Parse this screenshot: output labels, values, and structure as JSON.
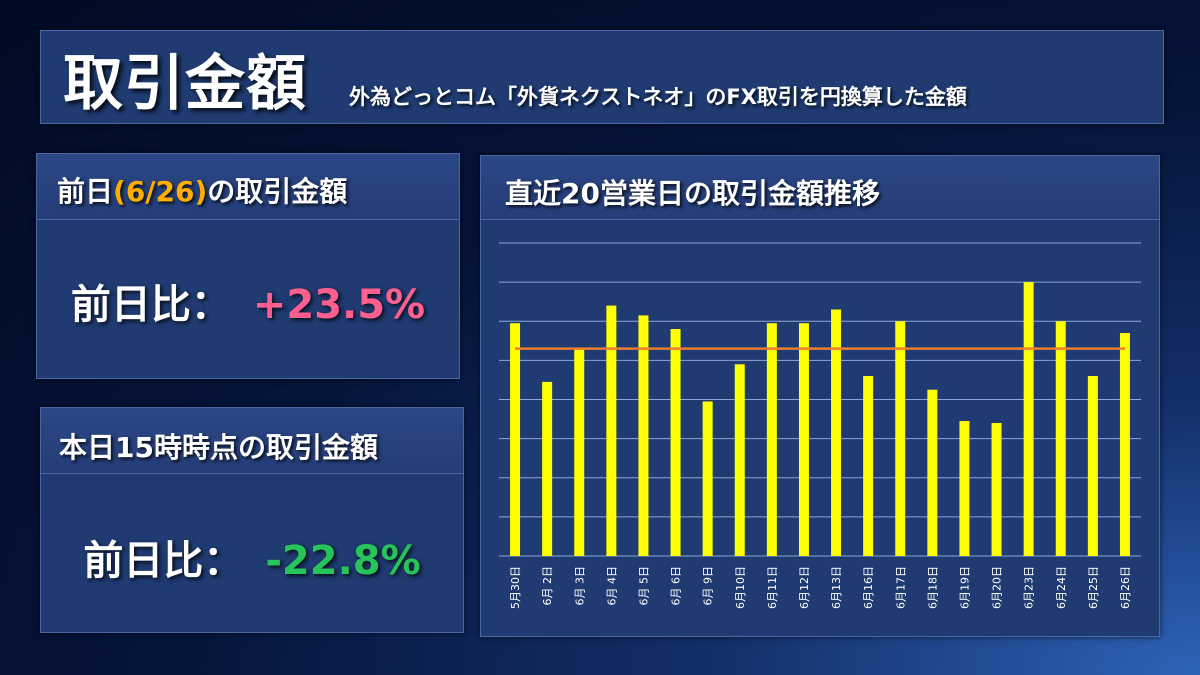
{
  "header": {
    "title": "取引金額",
    "subtitle": "外為どっとコム「外貨ネクストネオ」のFX取引を円換算した金額"
  },
  "prev_day": {
    "title_prefix": "前日",
    "title_date": "(6/26)",
    "title_suffix": "の取引金額",
    "ratio_label": "前日比：",
    "ratio_value": "+23.5%",
    "ratio_color": "#ff5f8f"
  },
  "today": {
    "title": "本日15時時点の取引金額",
    "ratio_label": "前日比：",
    "ratio_value": "-22.8%",
    "ratio_color": "#27c45a"
  },
  "chart": {
    "title": "直近20営業日の取引金額推移"
  },
  "chart_data": {
    "type": "bar",
    "title": "直近20営業日の取引金額推移",
    "xlabel": "",
    "ylabel": "",
    "categories": [
      "5月30日",
      "6月 2日",
      "6月 3日",
      "6月 4日",
      "6月 5日",
      "6月 6日",
      "6月 9日",
      "6月10日",
      "6月11日",
      "6月12日",
      "6月13日",
      "6月16日",
      "6月17日",
      "6月18日",
      "6月19日",
      "6月20日",
      "6月23日",
      "6月24日",
      "6月25日",
      "6月26日"
    ],
    "values": [
      5.95,
      4.45,
      5.3,
      6.4,
      6.15,
      5.8,
      3.95,
      4.9,
      5.95,
      5.95,
      6.3,
      4.6,
      6.0,
      4.25,
      3.45,
      3.4,
      7.0,
      6.0,
      4.6,
      5.7
    ],
    "average": 5.3,
    "ylim": [
      0,
      8
    ],
    "y_ticks_labeled": false,
    "grid": true,
    "bar_color": "#ffff00",
    "average_line_color": "#ee7d31"
  }
}
